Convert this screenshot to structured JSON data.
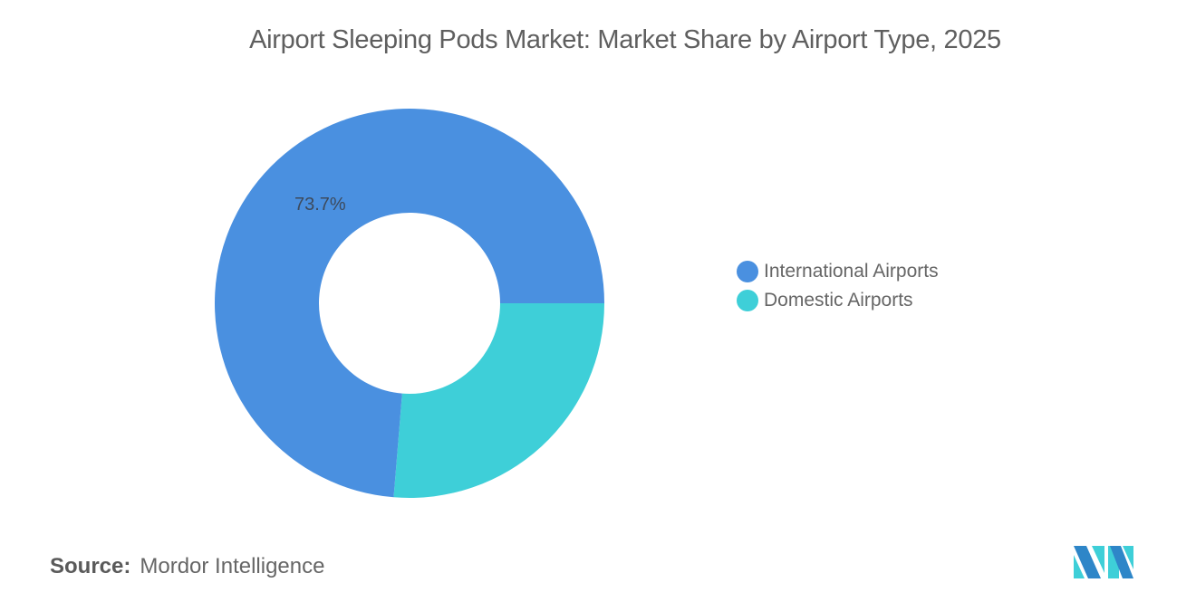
{
  "title": "Airport Sleeping Pods Market: Market Share by Airport Type, 2025",
  "chart_data": {
    "type": "donut",
    "title": "Airport Sleeping Pods Market: Market Share by Airport Type, 2025",
    "categories": [
      "International Airports",
      "Domestic Airports"
    ],
    "values": [
      73.7,
      26.3
    ],
    "colors": [
      "#4a90e0",
      "#3ecfd8"
    ],
    "data_labels": [
      "73.7%",
      ""
    ],
    "unit": "%",
    "legend_position": "right"
  },
  "legend": {
    "items": [
      {
        "label": "International Airports",
        "color": "#4a90e0"
      },
      {
        "label": "Domestic Airports",
        "color": "#3ecfd8"
      }
    ]
  },
  "labels": {
    "international_value": "73.7%"
  },
  "source": {
    "key": "Source:",
    "value": "Mordor Intelligence"
  }
}
